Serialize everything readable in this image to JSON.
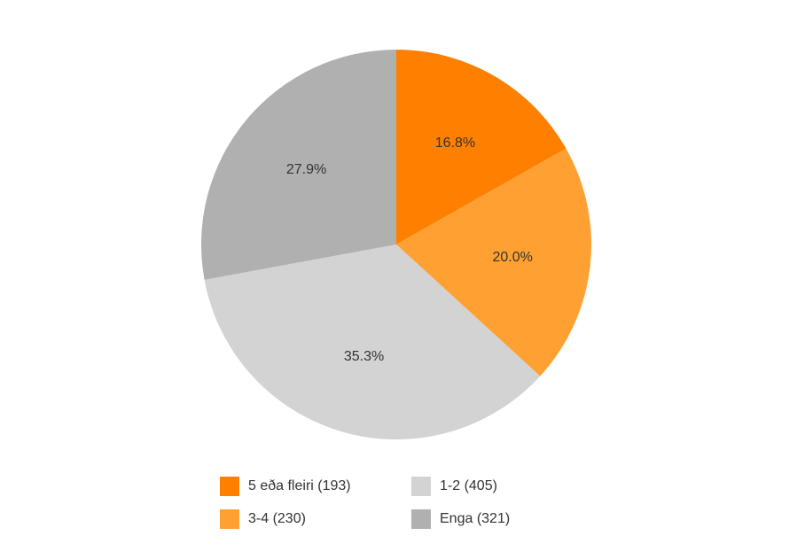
{
  "chart_data": {
    "type": "pie",
    "categories": [
      "5 eða fleiri (193)",
      "3-4 (230)",
      "1-2 (405)",
      "Enga (321)"
    ],
    "values": [
      16.8,
      20.0,
      35.3,
      27.9
    ],
    "value_labels": [
      "16.8%",
      "20.0%",
      "35.3%",
      "27.9%"
    ],
    "colors": [
      "#ff8000",
      "#ffa033",
      "#d3d3d3",
      "#b0b0b0"
    ],
    "legend": "bottom"
  }
}
